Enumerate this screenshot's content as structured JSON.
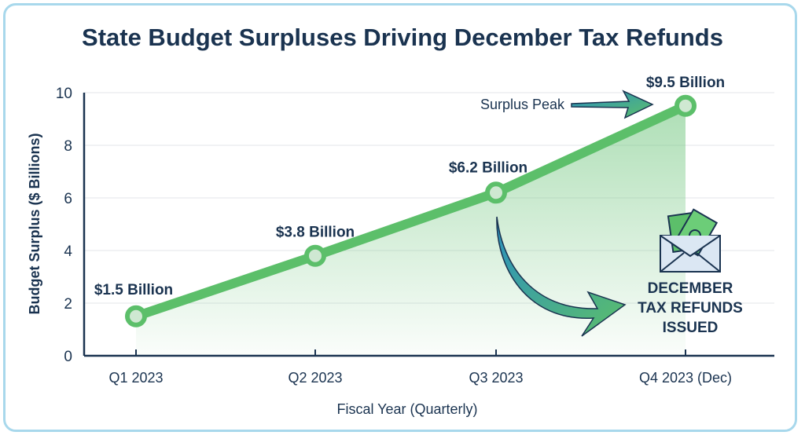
{
  "chart_data": {
    "type": "line",
    "title": "State Budget Surpluses Driving December Tax Refunds",
    "xlabel": "Fiscal Year (Quarterly)",
    "ylabel": "Budget Surplus ($ Billions)",
    "categories": [
      "Q1 2023",
      "Q2 2023",
      "Q3 2023",
      "Q4 2023 (Dec)"
    ],
    "series": [
      {
        "name": "Budget Surplus",
        "values": [
          1.5,
          3.8,
          6.2,
          9.5
        ],
        "color": "#5cbf6a"
      }
    ],
    "data_labels": [
      "$1.5 Billion",
      "$3.8 Billion",
      "$6.2 Billion",
      "$9.5 Billion"
    ],
    "ylim": [
      0,
      10
    ],
    "yticks": [
      0,
      2,
      4,
      6,
      8,
      10
    ],
    "grid": true,
    "annotations": {
      "peak": "Surplus Peak",
      "refund_lines": [
        "DECEMBER",
        "TAX REFUNDS",
        "ISSUED"
      ]
    },
    "colors": {
      "title": "#1a3350",
      "line": "#5cbf6a",
      "axis": "#1a3350",
      "arrow_start": "#2a9bc4",
      "arrow_end": "#5cbf6a"
    }
  }
}
